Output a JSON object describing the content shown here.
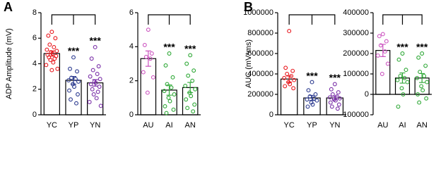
{
  "chart_data": [
    {
      "type": "bar",
      "panel": "A",
      "ylabel": "ADP Amplitude (mV)",
      "categories": [
        "YC",
        "YP",
        "YN"
      ],
      "values": [
        4.8,
        2.7,
        2.5
      ],
      "errors": [
        0.2,
        0.3,
        0.25
      ],
      "points": [
        [
          6.5,
          6.2,
          6.0,
          5.5,
          5.3,
          5.1,
          5.0,
          4.9,
          4.8,
          4.7,
          4.6,
          4.5,
          4.4,
          4.3,
          4.1,
          3.9,
          3.6,
          3.5
        ],
        [
          4.5,
          3.6,
          3.4,
          2.9,
          2.8,
          2.7,
          2.6,
          2.4,
          2.2,
          1.9,
          1.6,
          1.2,
          0.9
        ],
        [
          5.3,
          4.4,
          3.8,
          3.5,
          3.2,
          3.0,
          2.8,
          2.6,
          2.5,
          2.4,
          2.2,
          2.0,
          1.8,
          1.6,
          1.3,
          1.0,
          0.7
        ]
      ],
      "colors": [
        "#e8191f",
        "#2b3a8f",
        "#7a2fa8"
      ],
      "annotations": [
        null,
        "***",
        "***"
      ],
      "ylim": [
        0,
        8
      ],
      "yticks": [
        0,
        2,
        4,
        6,
        8
      ]
    },
    {
      "type": "bar",
      "categories": [
        "AU",
        "AI",
        "AN"
      ],
      "values": [
        3.3,
        1.45,
        1.6
      ],
      "errors": [
        0.45,
        0.3,
        0.3
      ],
      "points": [
        [
          5.0,
          4.1,
          3.6,
          3.4,
          3.3,
          2.5,
          2.2,
          1.3
        ],
        [
          3.6,
          2.9,
          2.2,
          1.8,
          1.6,
          1.4,
          1.2,
          1.0,
          0.8,
          0.5,
          0.3,
          0.1
        ],
        [
          3.5,
          3.0,
          2.6,
          2.3,
          2.0,
          1.7,
          1.5,
          1.3,
          1.1,
          0.9,
          0.6,
          0.4,
          0.2
        ]
      ],
      "colors": [
        "#cc55c0",
        "#2ea836",
        "#2ea836"
      ],
      "annotations": [
        null,
        "***",
        "***"
      ],
      "ylim": [
        0,
        6
      ],
      "yticks": [
        0,
        2,
        4,
        6
      ]
    },
    {
      "type": "bar",
      "panel": "B",
      "ylabel": "AUC (mV*ms)",
      "categories": [
        "YC",
        "YP",
        "YN"
      ],
      "values": [
        350000,
        165000,
        165000
      ],
      "errors": [
        30000,
        25000,
        18000
      ],
      "points": [
        [
          820000,
          460000,
          430000,
          400000,
          380000,
          360000,
          340000,
          320000,
          300000,
          280000,
          260000
        ],
        [
          320000,
          240000,
          200000,
          180000,
          160000,
          150000,
          140000,
          120000,
          100000,
          80000
        ],
        [
          300000,
          250000,
          220000,
          200000,
          180000,
          170000,
          160000,
          150000,
          140000,
          120000,
          100000,
          80000,
          60000
        ]
      ],
      "colors": [
        "#e8191f",
        "#2b3a8f",
        "#7a2fa8"
      ],
      "annotations": [
        null,
        "***",
        "***"
      ],
      "ylim": [
        0,
        1000000
      ],
      "yticks": [
        0,
        200000,
        400000,
        600000,
        800000,
        1000000
      ]
    },
    {
      "type": "bar",
      "categories": [
        "AU",
        "AI",
        "AN"
      ],
      "values": [
        215000,
        80000,
        80000
      ],
      "errors": [
        30000,
        25000,
        22000
      ],
      "points": [
        [
          295000,
          285000,
          260000,
          240000,
          210000,
          190000,
          150000,
          100000
        ],
        [
          200000,
          170000,
          120000,
          90000,
          80000,
          70000,
          60000,
          30000,
          0,
          -60000
        ],
        [
          200000,
          180000,
          140000,
          110000,
          90000,
          80000,
          60000,
          40000,
          20000,
          0,
          -20000,
          -40000
        ]
      ],
      "colors": [
        "#cc55c0",
        "#2ea836",
        "#2ea836"
      ],
      "annotations": [
        null,
        "***",
        "***"
      ],
      "ylim": [
        -100000,
        400000
      ],
      "yticks": [
        -100000,
        0,
        100000,
        200000,
        300000,
        400000
      ]
    }
  ]
}
